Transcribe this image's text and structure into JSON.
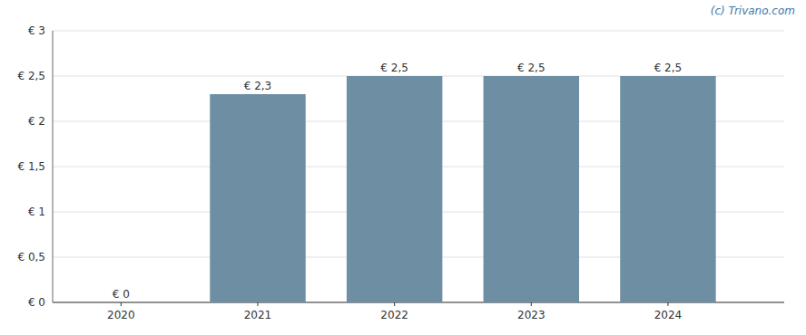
{
  "chart_data": {
    "type": "bar",
    "x": [
      2020,
      2021,
      2022,
      2023,
      2024
    ],
    "values": [
      0,
      2.3,
      2.5,
      2.5,
      2.5
    ],
    "value_labels": [
      "€ 0",
      "€ 2,3",
      "€ 2,5",
      "€ 2,5",
      "€ 2,5"
    ],
    "data_labels": true,
    "color": "#6e8fa3",
    "xlim": [
      2019.5,
      2024.85
    ],
    "xticks": [
      2020,
      2021,
      2022,
      2023,
      2024
    ],
    "ylim": [
      0,
      3
    ],
    "yticks": [
      {
        "value": 0,
        "label": "€ 0"
      },
      {
        "value": 0.5,
        "label": "€ 0,5"
      },
      {
        "value": 1.0,
        "label": "€ 1"
      },
      {
        "value": 1.5,
        "label": "€ 1,5"
      },
      {
        "value": 2.0,
        "label": "€ 2"
      },
      {
        "value": 2.5,
        "label": "€ 2,5"
      },
      {
        "value": 3.0,
        "label": "€ 3"
      }
    ],
    "grid": true,
    "annotations": [
      "(c) Trivano.com"
    ]
  }
}
